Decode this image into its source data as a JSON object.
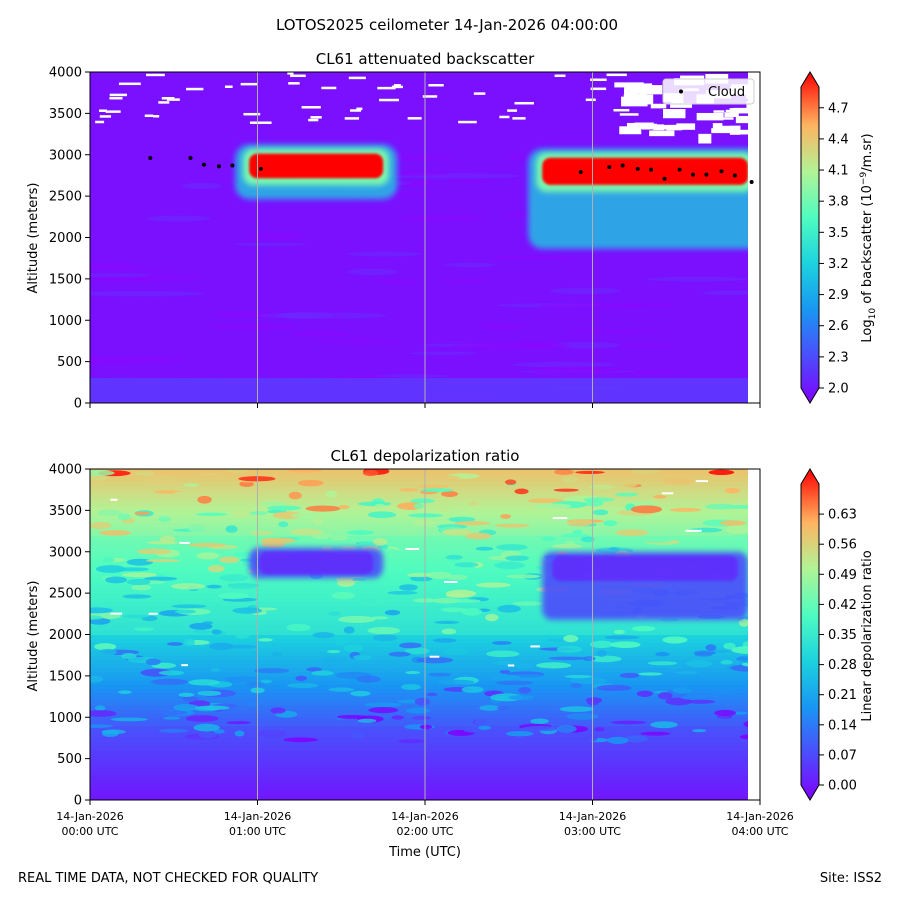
{
  "figure": {
    "suptitle": "LOTOS2025 ceilometer 14-Jan-2026 04:00:00",
    "footer_left": "REAL TIME DATA, NOT CHECKED FOR QUALITY",
    "footer_right": "Site: ISS2"
  },
  "colors": {
    "grid": "#b0b0b0",
    "cloud_marker": "#000000"
  },
  "chart_data": [
    {
      "type": "heatmap",
      "title": "CL61 attenuated backscatter",
      "ylabel": "Altitude (meters)",
      "xlabel": "",
      "colorbar_label_pre": "Log",
      "colorbar_label_sub": "10",
      "colorbar_label_mid": " of backscatter (10",
      "colorbar_label_sup": "−9",
      "colorbar_label_post": "/m.sr)",
      "colorbar_range": [
        2.0,
        4.9
      ],
      "colorbar_ticks": [
        "2.0",
        "2.3",
        "2.6",
        "2.9",
        "3.2",
        "3.5",
        "3.8",
        "4.1",
        "4.4",
        "4.7"
      ],
      "ylim": [
        0,
        4000
      ],
      "yticks": [
        "0",
        "500",
        "1000",
        "1500",
        "2000",
        "2500",
        "3000",
        "3500",
        "4000"
      ],
      "xlim_hours": [
        0,
        4
      ],
      "legend": {
        "label": "Cloud",
        "position": "top-right"
      },
      "cloud_base_points": [
        {
          "t": 0.36,
          "alt": 2960
        },
        {
          "t": 0.6,
          "alt": 2960
        },
        {
          "t": 0.68,
          "alt": 2880
        },
        {
          "t": 0.77,
          "alt": 2860
        },
        {
          "t": 0.85,
          "alt": 2870
        },
        {
          "t": 1.02,
          "alt": 2830
        },
        {
          "t": 2.93,
          "alt": 2790
        },
        {
          "t": 3.1,
          "alt": 2850
        },
        {
          "t": 3.18,
          "alt": 2870
        },
        {
          "t": 3.27,
          "alt": 2830
        },
        {
          "t": 3.35,
          "alt": 2820
        },
        {
          "t": 3.43,
          "alt": 2710
        },
        {
          "t": 3.52,
          "alt": 2820
        },
        {
          "t": 3.6,
          "alt": 2760
        },
        {
          "t": 3.68,
          "alt": 2760
        },
        {
          "t": 3.77,
          "alt": 2800
        },
        {
          "t": 3.85,
          "alt": 2750
        },
        {
          "t": 3.95,
          "alt": 2670
        }
      ],
      "cloud_layers": [
        {
          "t0": 0.95,
          "t1": 1.75,
          "top": 3050,
          "base": 2680,
          "peak": 5.0
        },
        {
          "t0": 2.7,
          "t1": 3.95,
          "top": 3000,
          "base": 2600,
          "peak": 5.0
        }
      ]
    },
    {
      "type": "heatmap",
      "title": "CL61 depolarization ratio",
      "ylabel": "Altitude (meters)",
      "xlabel": "Time (UTC)",
      "colorbar_label": "Linear depolarization ratio",
      "colorbar_range": [
        0.0,
        0.7
      ],
      "colorbar_ticks": [
        "0.00",
        "0.07",
        "0.14",
        "0.21",
        "0.28",
        "0.35",
        "0.42",
        "0.49",
        "0.56",
        "0.63"
      ],
      "ylim": [
        0,
        4000
      ],
      "yticks": [
        "0",
        "500",
        "1000",
        "1500",
        "2000",
        "2500",
        "3000",
        "3500",
        "4000"
      ],
      "xticks": [
        {
          "date": "14-Jan-2026",
          "time": "00:00 UTC"
        },
        {
          "date": "14-Jan-2026",
          "time": "01:00 UTC"
        },
        {
          "date": "14-Jan-2026",
          "time": "02:00 UTC"
        },
        {
          "date": "14-Jan-2026",
          "time": "03:00 UTC"
        },
        {
          "date": "14-Jan-2026",
          "time": "04:00 UTC"
        }
      ]
    }
  ]
}
